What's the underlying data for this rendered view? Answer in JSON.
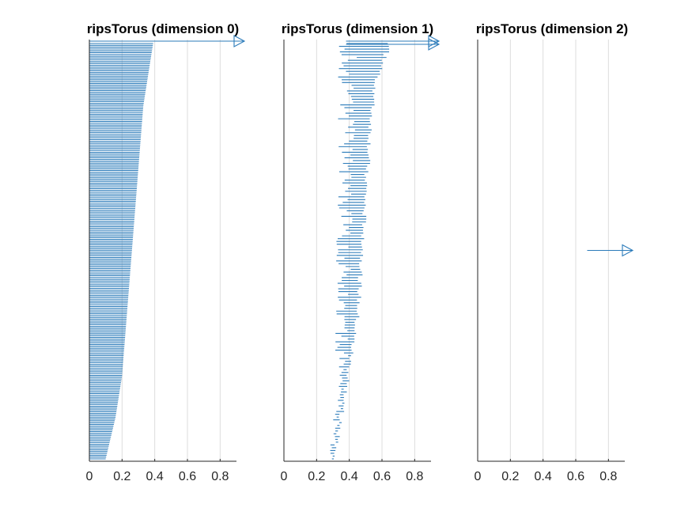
{
  "figure": {
    "background": "#ffffff"
  },
  "chart_data": [
    {
      "type": "barcode",
      "title": "ripsTorus (dimension 0)",
      "xlabel": "",
      "ylabel": "",
      "xlim": [
        0,
        0.9
      ],
      "xticks": [
        0,
        0.2,
        0.4,
        0.6,
        0.8
      ],
      "xtick_labels": [
        "0",
        "0.2",
        "0.4",
        "0.6",
        "0.8"
      ],
      "grid": "vertical",
      "color": "#2b7bba",
      "infinite_bars": [
        {
          "birth": 0,
          "death": "Inf"
        }
      ],
      "finite_bars_profile": {
        "note": "bars sorted by death, longest at top",
        "bar_count": 230,
        "birth": 0,
        "death_range": [
          0.1,
          0.39
        ],
        "death_profile_top_to_bottom": [
          0.39,
          0.37,
          0.35,
          0.33,
          0.32,
          0.31,
          0.3,
          0.29,
          0.28,
          0.27,
          0.26,
          0.25,
          0.24,
          0.23,
          0.22,
          0.21,
          0.2,
          0.18,
          0.16,
          0.13,
          0.1
        ]
      }
    },
    {
      "type": "barcode",
      "title": "ripsTorus (dimension 1)",
      "xlabel": "",
      "ylabel": "",
      "xlim": [
        0,
        0.9
      ],
      "xticks": [
        0,
        0.2,
        0.4,
        0.6,
        0.8
      ],
      "xtick_labels": [
        "0",
        "0.2",
        "0.4",
        "0.6",
        "0.8"
      ],
      "grid": "vertical",
      "color": "#2b7bba",
      "infinite_bars": [
        {
          "birth": 0.38,
          "death": "Inf"
        },
        {
          "birth": 0.38,
          "death": "Inf"
        }
      ],
      "finite_bars_profile": {
        "note": "bars sorted by death, longest at top",
        "bar_count": 150,
        "birth_range": [
          0.27,
          0.45
        ],
        "death_range": [
          0.29,
          0.65
        ],
        "death_profile_top_to_bottom": [
          0.65,
          0.6,
          0.56,
          0.54,
          0.53,
          0.52,
          0.51,
          0.5,
          0.49,
          0.49,
          0.48,
          0.47,
          0.46,
          0.45,
          0.43,
          0.41,
          0.39,
          0.37,
          0.35,
          0.33,
          0.3
        ]
      }
    },
    {
      "type": "barcode",
      "title": "ripsTorus (dimension 2)",
      "xlabel": "",
      "ylabel": "",
      "xlim": [
        0,
        0.9
      ],
      "xticks": [
        0,
        0.2,
        0.4,
        0.6,
        0.8
      ],
      "xtick_labels": [
        "0",
        "0.2",
        "0.4",
        "0.6",
        "0.8"
      ],
      "grid": "vertical",
      "color": "#2b7bba",
      "infinite_bars": [
        {
          "birth": 0.67,
          "death": "Inf"
        }
      ],
      "finite_bars_profile": null
    }
  ]
}
